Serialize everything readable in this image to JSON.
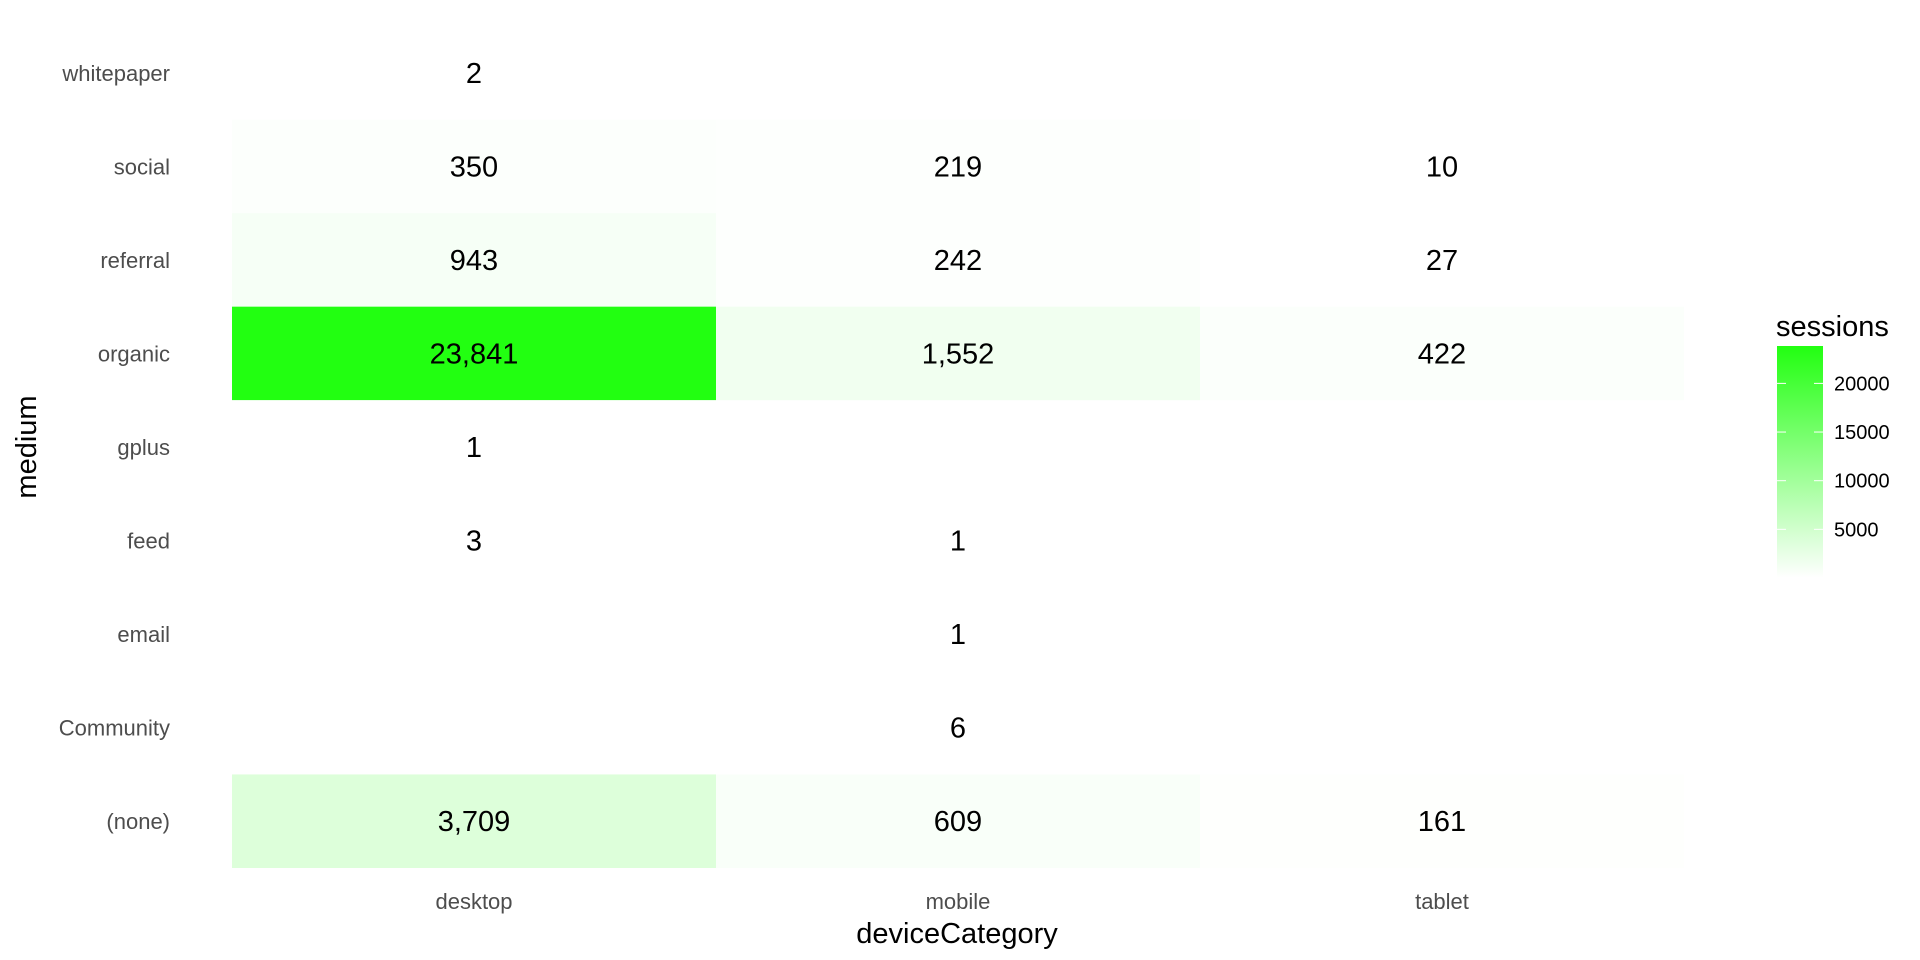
{
  "chart_data": {
    "type": "heatmap",
    "xlabel": "deviceCategory",
    "ylabel": "medium",
    "x_categories": [
      "desktop",
      "mobile",
      "tablet"
    ],
    "y_categories": [
      "(none)",
      "Community",
      "email",
      "feed",
      "gplus",
      "organic",
      "referral",
      "social",
      "whitepaper"
    ],
    "cells": [
      {
        "x": "desktop",
        "y": "whitepaper",
        "value": 2,
        "label": "2"
      },
      {
        "x": "desktop",
        "y": "social",
        "value": 350,
        "label": "350"
      },
      {
        "x": "mobile",
        "y": "social",
        "value": 219,
        "label": "219"
      },
      {
        "x": "tablet",
        "y": "social",
        "value": 10,
        "label": "10"
      },
      {
        "x": "desktop",
        "y": "referral",
        "value": 943,
        "label": "943"
      },
      {
        "x": "mobile",
        "y": "referral",
        "value": 242,
        "label": "242"
      },
      {
        "x": "tablet",
        "y": "referral",
        "value": 27,
        "label": "27"
      },
      {
        "x": "desktop",
        "y": "organic",
        "value": 23841,
        "label": "23,841"
      },
      {
        "x": "mobile",
        "y": "organic",
        "value": 1552,
        "label": "1,552"
      },
      {
        "x": "tablet",
        "y": "organic",
        "value": 422,
        "label": "422"
      },
      {
        "x": "desktop",
        "y": "gplus",
        "value": 1,
        "label": "1"
      },
      {
        "x": "desktop",
        "y": "feed",
        "value": 3,
        "label": "3"
      },
      {
        "x": "mobile",
        "y": "feed",
        "value": 1,
        "label": "1"
      },
      {
        "x": "mobile",
        "y": "email",
        "value": 1,
        "label": "1"
      },
      {
        "x": "mobile",
        "y": "Community",
        "value": 6,
        "label": "6"
      },
      {
        "x": "desktop",
        "y": "(none)",
        "value": 3709,
        "label": "3,709"
      },
      {
        "x": "mobile",
        "y": "(none)",
        "value": 609,
        "label": "609"
      },
      {
        "x": "tablet",
        "y": "(none)",
        "value": 161,
        "label": "161"
      }
    ],
    "color_scale": {
      "low": "#ffffff",
      "high": "#22ff11",
      "min": 1,
      "max": 23841
    },
    "legend": {
      "title": "sessions",
      "ticks": [
        5000,
        10000,
        15000,
        20000
      ],
      "placement": "right"
    },
    "grid": false
  }
}
